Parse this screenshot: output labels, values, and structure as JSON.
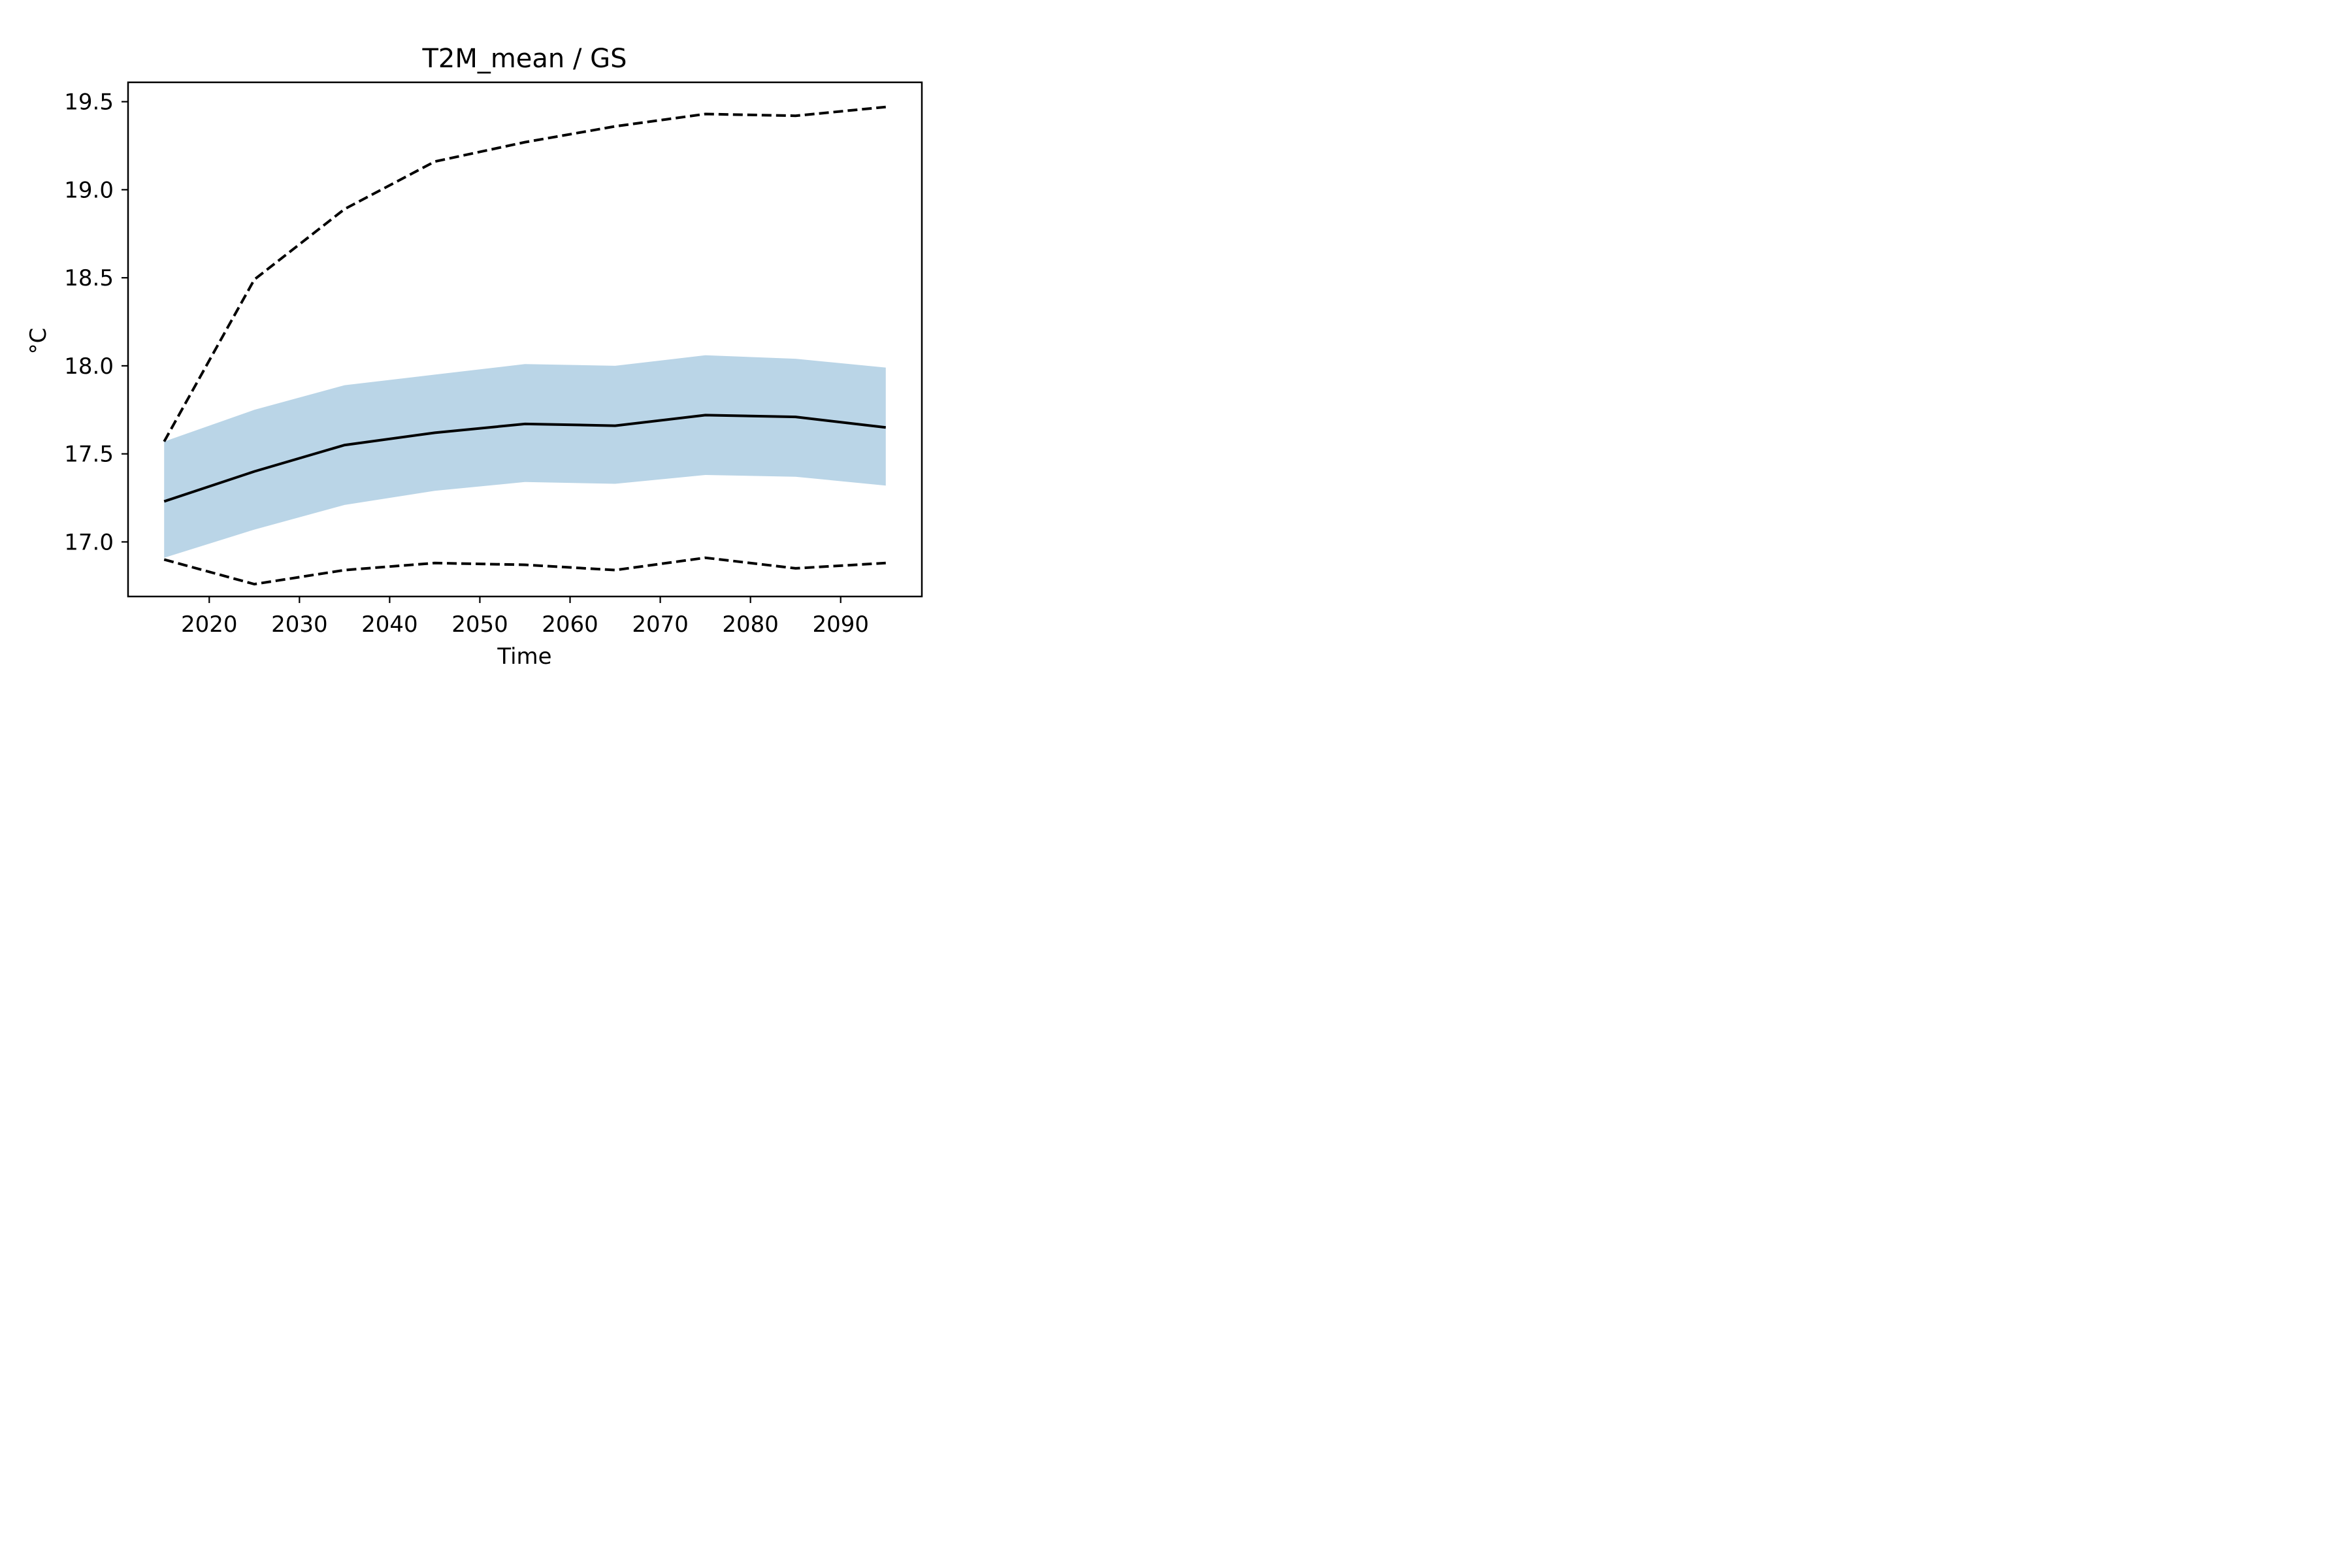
{
  "chart_data": {
    "type": "line",
    "title": "T2M_mean / GS",
    "xlabel": "Time",
    "ylabel": "°C",
    "xlim": [
      2011,
      2099
    ],
    "ylim": [
      16.69,
      19.61
    ],
    "xticks": [
      2020,
      2030,
      2040,
      2050,
      2060,
      2070,
      2080,
      2090
    ],
    "yticks": [
      17.0,
      17.5,
      18.0,
      18.5,
      19.0,
      19.5
    ],
    "ytick_labels": [
      "17.0",
      "17.5",
      "18.0",
      "18.5",
      "19.0",
      "19.5"
    ],
    "grid": false,
    "legend": "none",
    "x": [
      2015,
      2025,
      2035,
      2045,
      2055,
      2065,
      2075,
      2085,
      2095
    ],
    "series": [
      {
        "role": "band-upper",
        "values": [
          17.57,
          17.75,
          17.89,
          17.95,
          18.01,
          18.0,
          18.06,
          18.04,
          17.99
        ]
      },
      {
        "role": "band-lower",
        "values": [
          16.91,
          17.07,
          17.21,
          17.29,
          17.34,
          17.33,
          17.38,
          17.37,
          17.32
        ]
      },
      {
        "role": "line-solid",
        "values": [
          17.23,
          17.4,
          17.55,
          17.62,
          17.67,
          17.66,
          17.72,
          17.71,
          17.65
        ]
      },
      {
        "role": "line-dashed-upper",
        "values": [
          17.57,
          18.49,
          18.89,
          19.16,
          19.27,
          19.36,
          19.43,
          19.42,
          19.47
        ]
      },
      {
        "role": "line-dashed-lower",
        "values": [
          16.9,
          16.76,
          16.84,
          16.88,
          16.87,
          16.84,
          16.91,
          16.85,
          16.88
        ]
      }
    ],
    "colors": {
      "band": "#bad5e7",
      "line": "#000000",
      "axes": "#000000"
    }
  }
}
